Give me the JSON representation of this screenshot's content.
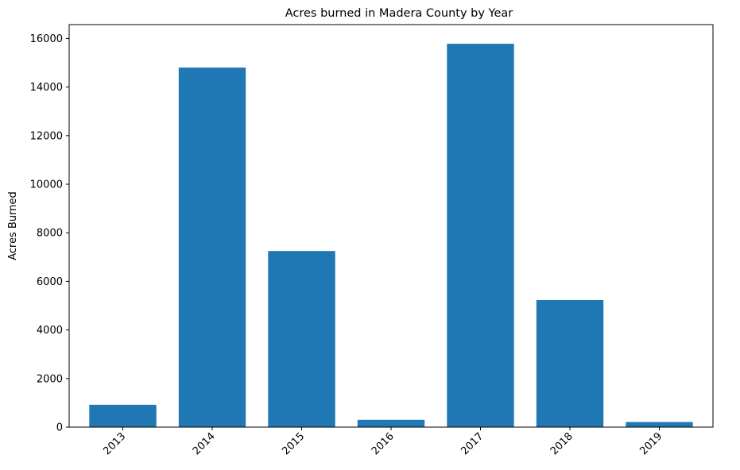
{
  "chart_data": {
    "type": "bar",
    "title": "Acres burned in Madera County by Year",
    "xlabel": "",
    "ylabel": "Acres Burned",
    "categories": [
      "2013",
      "2014",
      "2015",
      "2016",
      "2017",
      "2018",
      "2019"
    ],
    "values": [
      920,
      14800,
      7250,
      300,
      15780,
      5230,
      210
    ],
    "ylim": [
      0,
      16570
    ],
    "yticks": [
      0,
      2000,
      4000,
      6000,
      8000,
      10000,
      12000,
      14000,
      16000
    ],
    "bar_color": "#1f77b4",
    "grid": false,
    "legend": "none"
  }
}
